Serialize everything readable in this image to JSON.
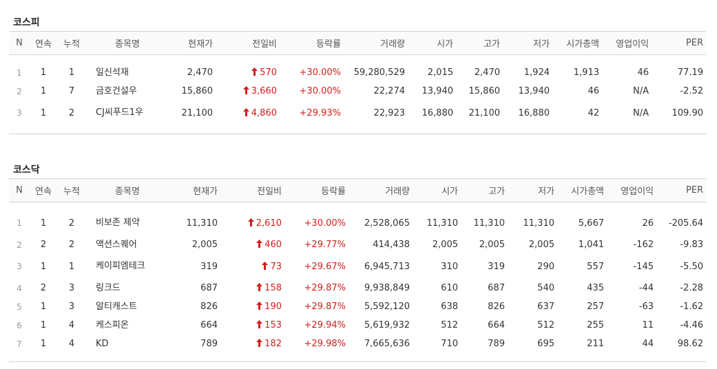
{
  "colors": {
    "up": "#d31c1c",
    "border": "#d2d2d2",
    "header_bg": "#fafafa"
  },
  "headers": [
    "N",
    "연속",
    "누적",
    "종목명",
    "현재가",
    "전일비",
    "등락률",
    "거래량",
    "시가",
    "고가",
    "저가",
    "시가총액",
    "영업이익",
    "PER"
  ],
  "kospi": {
    "title": "코스피",
    "rows": [
      {
        "n": "1",
        "streak": "1",
        "cumulative": "1",
        "name": "일신석재",
        "price": "2,470",
        "change": "570",
        "rate": "+30.00%",
        "volume": "59,280,529",
        "open": "2,015",
        "high": "2,470",
        "low": "1,924",
        "mcap": "1,913",
        "op_income": "46",
        "per": "77.19"
      },
      {
        "n": "2",
        "streak": "1",
        "cumulative": "7",
        "name": "금호건설우",
        "price": "15,860",
        "change": "3,660",
        "rate": "+30.00%",
        "volume": "22,274",
        "open": "13,940",
        "high": "15,860",
        "low": "13,940",
        "mcap": "46",
        "op_income": "N/A",
        "per": "-2.52"
      },
      {
        "n": "3",
        "streak": "1",
        "cumulative": "2",
        "name": "CJ씨푸드1우",
        "price": "21,100",
        "change": "4,860",
        "rate": "+29.93%",
        "volume": "22,923",
        "open": "16,880",
        "high": "21,100",
        "low": "16,880",
        "mcap": "42",
        "op_income": "N/A",
        "per": "109.90"
      }
    ]
  },
  "kosdaq": {
    "title": "코스닥",
    "rows": [
      {
        "n": "1",
        "streak": "1",
        "cumulative": "2",
        "name": "비보존 제약",
        "price": "11,310",
        "change": "2,610",
        "rate": "+30.00%",
        "volume": "2,528,065",
        "open": "11,310",
        "high": "11,310",
        "low": "11,310",
        "mcap": "5,667",
        "op_income": "26",
        "per": "-205.64"
      },
      {
        "n": "2",
        "streak": "2",
        "cumulative": "2",
        "name": "액션스퀘어",
        "price": "2,005",
        "change": "460",
        "rate": "+29.77%",
        "volume": "414,438",
        "open": "2,005",
        "high": "2,005",
        "low": "2,005",
        "mcap": "1,041",
        "op_income": "-162",
        "per": "-9.83"
      },
      {
        "n": "3",
        "streak": "1",
        "cumulative": "1",
        "name": "케이피엠테크",
        "price": "319",
        "change": "73",
        "rate": "+29.67%",
        "volume": "6,945,713",
        "open": "310",
        "high": "319",
        "low": "290",
        "mcap": "557",
        "op_income": "-145",
        "per": "-5.50"
      },
      {
        "n": "4",
        "streak": "2",
        "cumulative": "3",
        "name": "링크드",
        "price": "687",
        "change": "158",
        "rate": "+29.87%",
        "volume": "9,938,849",
        "open": "610",
        "high": "687",
        "low": "540",
        "mcap": "435",
        "op_income": "-44",
        "per": "-2.28"
      },
      {
        "n": "5",
        "streak": "1",
        "cumulative": "3",
        "name": "알티캐스트",
        "price": "826",
        "change": "190",
        "rate": "+29.87%",
        "volume": "5,592,120",
        "open": "638",
        "high": "826",
        "low": "637",
        "mcap": "257",
        "op_income": "-63",
        "per": "-1.62"
      },
      {
        "n": "6",
        "streak": "1",
        "cumulative": "4",
        "name": "케스피온",
        "price": "664",
        "change": "153",
        "rate": "+29.94%",
        "volume": "5,619,932",
        "open": "512",
        "high": "664",
        "low": "512",
        "mcap": "255",
        "op_income": "11",
        "per": "-4.46"
      },
      {
        "n": "7",
        "streak": "1",
        "cumulative": "4",
        "name": "KD",
        "price": "789",
        "change": "182",
        "rate": "+29.98%",
        "volume": "7,665,636",
        "open": "710",
        "high": "789",
        "low": "695",
        "mcap": "211",
        "op_income": "44",
        "per": "98.62"
      }
    ]
  }
}
